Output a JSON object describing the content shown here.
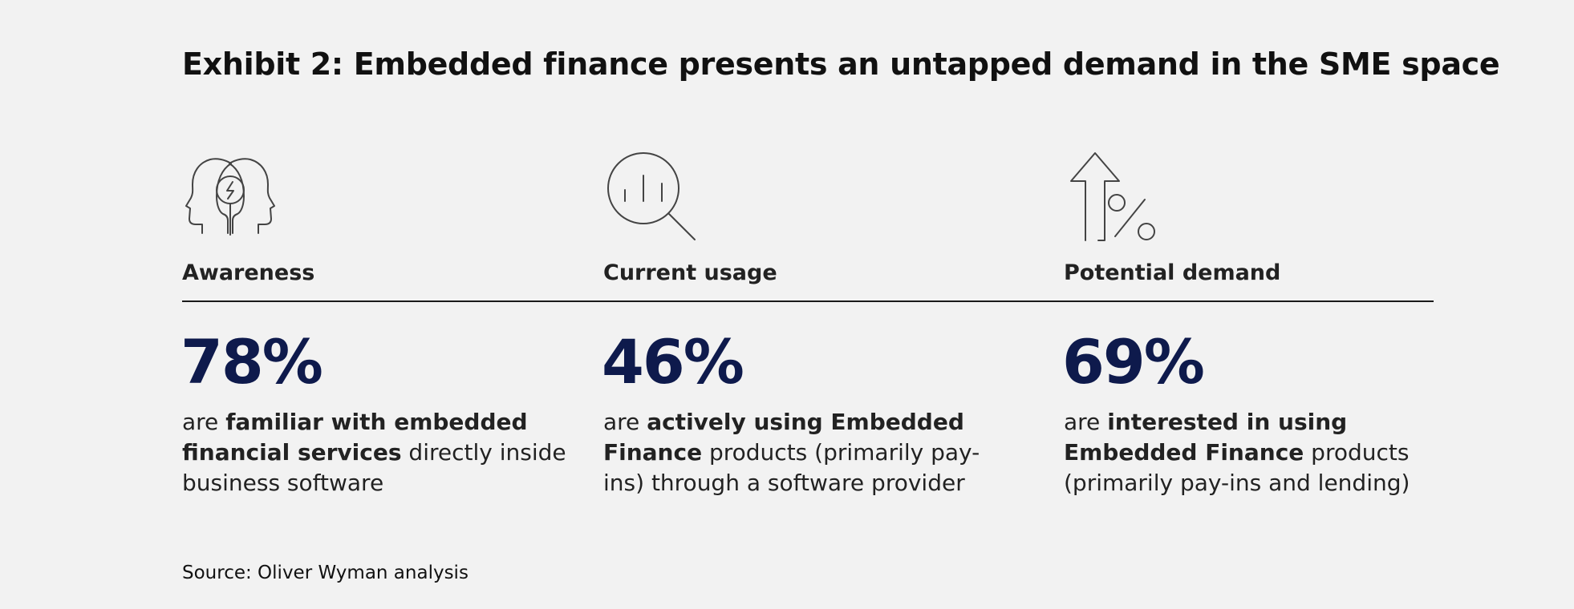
{
  "title": "Exhibit 2: Embedded finance presents an untapped demand in the SME space",
  "columns": [
    {
      "icon": "two-heads-idea-icon",
      "label": "Awareness",
      "stat": "78%",
      "pre": "are ",
      "bold": "familiar with embedded financial services",
      "post": " directly inside business software"
    },
    {
      "icon": "magnifier-chart-icon",
      "label": "Current usage",
      "stat": "46%",
      "pre": "are ",
      "bold": "actively using Embedded Finance",
      "post": " products (primarily pay-ins) through a software provider"
    },
    {
      "icon": "arrow-up-percent-icon",
      "label": "Potential demand",
      "stat": "69%",
      "pre": "are ",
      "bold": "interested in using Embedded Finance",
      "post": " products (primarily pay-ins and lending)"
    }
  ],
  "source": "Source: Oliver Wyman analysis",
  "colors": {
    "background": "#f2f2f2",
    "stat": "#0e1a4c",
    "text": "#222222",
    "icon_stroke": "#444444"
  }
}
